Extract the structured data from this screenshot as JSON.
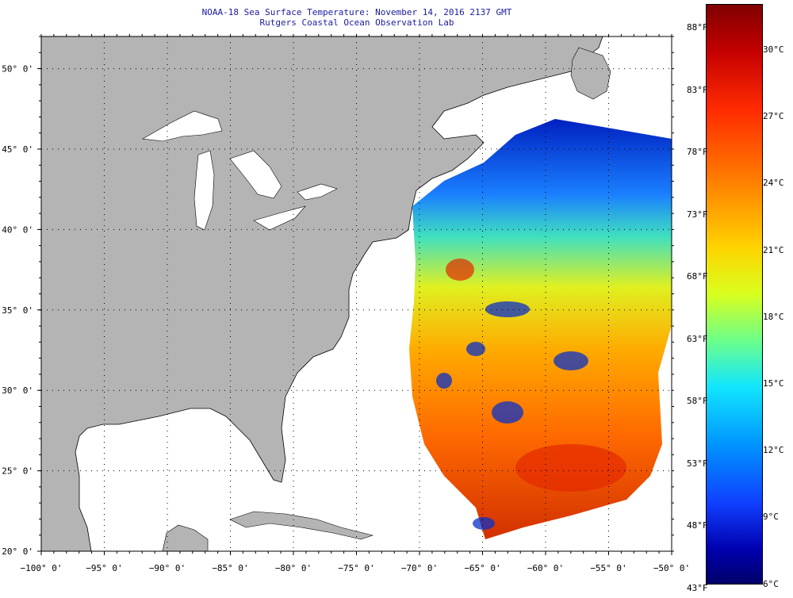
{
  "title": {
    "line1": "NOAA-18 Sea Surface Temperature:  November 14, 2016 2137 GMT",
    "line2": "Rutgers Coastal Ocean Observation Lab"
  },
  "axes": {
    "lon_labels": [
      "−100° 0'",
      "−95° 0'",
      "−90° 0'",
      "−85° 0'",
      "−80° 0'",
      "−75° 0'",
      "−70° 0'",
      "−65° 0'",
      "−60° 0'",
      "−55° 0'",
      "−50° 0'"
    ],
    "lat_labels": [
      "20° 0'",
      "25° 0'",
      "30° 0'",
      "35° 0'",
      "40° 0'",
      "45° 0'",
      "50° 0'"
    ],
    "lon_range": [
      -100,
      -50
    ],
    "lat_range": [
      20,
      52
    ]
  },
  "colorbar": {
    "fahrenheit": [
      "88°F",
      "83°F",
      "78°F",
      "73°F",
      "68°F",
      "63°F",
      "58°F",
      "53°F",
      "48°F",
      "43°F"
    ],
    "celsius": [
      "30°C",
      "27°C",
      "24°C",
      "21°C",
      "18°C",
      "15°C",
      "12°C",
      "9°C",
      "6°C"
    ]
  },
  "colors": {
    "land": "#b4b4b4",
    "ocean_no_data": "#ffffff",
    "title_text": "#1a1aa0"
  }
}
